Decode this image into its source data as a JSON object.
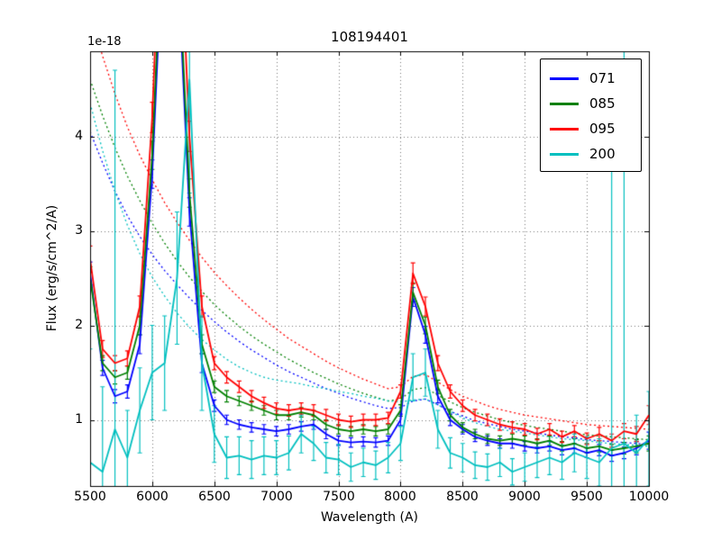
{
  "chart_data": {
    "type": "line",
    "title": "108194401",
    "xlabel": "Wavelength (A)",
    "ylabel": "Flux (erg/s/cm^2/A)",
    "y_offset_text": "1e-18",
    "grid": true,
    "legend_position": "upper right",
    "xlim": [
      5500,
      10000
    ],
    "ylim": [
      0.3,
      4.9
    ],
    "x_ticks": [
      5500,
      6000,
      6500,
      7000,
      7500,
      8000,
      8500,
      9000,
      9500,
      10000
    ],
    "y_ticks": [
      1,
      2,
      3,
      4
    ],
    "x": [
      5500,
      5600,
      5700,
      5800,
      5900,
      6000,
      6100,
      6200,
      6300,
      6400,
      6500,
      6600,
      6700,
      6800,
      6900,
      7000,
      7100,
      7200,
      7300,
      7400,
      7500,
      7600,
      7700,
      7800,
      7900,
      8000,
      8100,
      8200,
      8300,
      8400,
      8500,
      8600,
      8700,
      8800,
      8900,
      9000,
      9100,
      9200,
      9300,
      9400,
      9500,
      9600,
      9700,
      9800,
      9900,
      10000
    ],
    "series": [
      {
        "name": "071",
        "color": "#0000ff",
        "values": [
          2.55,
          1.55,
          1.25,
          1.3,
          1.8,
          3.6,
          6.5,
          6.0,
          3.2,
          1.6,
          1.15,
          1.0,
          0.95,
          0.92,
          0.9,
          0.88,
          0.9,
          0.93,
          0.95,
          0.85,
          0.78,
          0.76,
          0.77,
          0.76,
          0.78,
          1.0,
          2.3,
          1.9,
          1.25,
          1.0,
          0.9,
          0.82,
          0.78,
          0.75,
          0.75,
          0.72,
          0.7,
          0.72,
          0.68,
          0.7,
          0.65,
          0.68,
          0.62,
          0.65,
          0.7,
          0.78
        ],
        "errors": [
          0.12,
          0.08,
          0.07,
          0.07,
          0.1,
          0.15,
          0.2,
          0.2,
          0.15,
          0.1,
          0.06,
          0.05,
          0.05,
          0.05,
          0.05,
          0.05,
          0.05,
          0.05,
          0.05,
          0.05,
          0.05,
          0.05,
          0.05,
          0.05,
          0.05,
          0.06,
          0.1,
          0.09,
          0.07,
          0.06,
          0.05,
          0.05,
          0.05,
          0.05,
          0.05,
          0.05,
          0.05,
          0.05,
          0.05,
          0.05,
          0.05,
          0.06,
          0.06,
          0.06,
          0.07,
          0.09
        ],
        "model": [
          4.05,
          3.72,
          3.42,
          3.16,
          2.94,
          2.75,
          2.58,
          2.43,
          2.29,
          2.16,
          2.04,
          1.93,
          1.83,
          1.74,
          1.66,
          1.58,
          1.51,
          1.45,
          1.39,
          1.33,
          1.28,
          1.23,
          1.19,
          1.15,
          1.12,
          1.13,
          1.2,
          1.22,
          1.16,
          1.09,
          1.04,
          0.99,
          0.96,
          0.93,
          0.9,
          0.88,
          0.86,
          0.84,
          0.82,
          0.81,
          0.79,
          0.78,
          0.77,
          0.76,
          0.75,
          0.74
        ]
      },
      {
        "name": "085",
        "color": "#008000",
        "values": [
          2.5,
          1.6,
          1.45,
          1.5,
          2.0,
          3.8,
          6.8,
          6.2,
          3.4,
          1.8,
          1.35,
          1.25,
          1.2,
          1.15,
          1.1,
          1.05,
          1.05,
          1.08,
          1.05,
          0.95,
          0.9,
          0.88,
          0.9,
          0.88,
          0.9,
          1.1,
          2.35,
          2.0,
          1.35,
          1.05,
          0.92,
          0.85,
          0.8,
          0.78,
          0.8,
          0.78,
          0.75,
          0.78,
          0.72,
          0.75,
          0.7,
          0.72,
          0.68,
          0.7,
          0.72,
          0.75
        ],
        "errors": [
          0.12,
          0.08,
          0.07,
          0.07,
          0.1,
          0.15,
          0.2,
          0.2,
          0.15,
          0.1,
          0.06,
          0.06,
          0.05,
          0.05,
          0.05,
          0.05,
          0.05,
          0.05,
          0.05,
          0.05,
          0.05,
          0.05,
          0.05,
          0.05,
          0.05,
          0.06,
          0.1,
          0.09,
          0.07,
          0.06,
          0.05,
          0.05,
          0.05,
          0.05,
          0.05,
          0.05,
          0.05,
          0.05,
          0.05,
          0.05,
          0.05,
          0.06,
          0.06,
          0.06,
          0.07,
          0.08
        ],
        "model": [
          4.6,
          4.22,
          3.88,
          3.58,
          3.32,
          3.08,
          2.87,
          2.68,
          2.51,
          2.36,
          2.22,
          2.1,
          1.99,
          1.89,
          1.8,
          1.72,
          1.64,
          1.57,
          1.5,
          1.44,
          1.38,
          1.33,
          1.28,
          1.24,
          1.2,
          1.22,
          1.32,
          1.34,
          1.26,
          1.19,
          1.13,
          1.08,
          1.04,
          1.0,
          0.97,
          0.94,
          0.92,
          0.9,
          0.88,
          0.86,
          0.84,
          0.83,
          0.82,
          0.81,
          0.8,
          0.79
        ]
      },
      {
        "name": "095",
        "color": "#ff0000",
        "values": [
          2.7,
          1.75,
          1.6,
          1.65,
          2.2,
          4.2,
          7.5,
          7.0,
          4.0,
          2.2,
          1.6,
          1.45,
          1.35,
          1.25,
          1.18,
          1.12,
          1.1,
          1.12,
          1.1,
          1.05,
          1.0,
          0.98,
          1.0,
          1.0,
          1.02,
          1.3,
          2.55,
          2.2,
          1.6,
          1.3,
          1.15,
          1.05,
          1.0,
          0.95,
          0.92,
          0.9,
          0.85,
          0.9,
          0.82,
          0.88,
          0.8,
          0.85,
          0.78,
          0.88,
          0.85,
          1.05
        ],
        "errors": [
          0.14,
          0.09,
          0.08,
          0.08,
          0.11,
          0.16,
          0.22,
          0.22,
          0.16,
          0.11,
          0.07,
          0.06,
          0.06,
          0.06,
          0.06,
          0.06,
          0.06,
          0.06,
          0.06,
          0.06,
          0.06,
          0.06,
          0.06,
          0.06,
          0.06,
          0.07,
          0.11,
          0.1,
          0.08,
          0.07,
          0.06,
          0.06,
          0.06,
          0.06,
          0.06,
          0.06,
          0.06,
          0.06,
          0.06,
          0.06,
          0.06,
          0.07,
          0.07,
          0.08,
          0.08,
          0.1
        ],
        "model": [
          5.3,
          4.85,
          4.45,
          4.1,
          3.8,
          3.54,
          3.3,
          3.09,
          2.9,
          2.72,
          2.56,
          2.42,
          2.29,
          2.17,
          2.06,
          1.96,
          1.86,
          1.78,
          1.7,
          1.62,
          1.55,
          1.49,
          1.43,
          1.38,
          1.33,
          1.35,
          1.46,
          1.48,
          1.4,
          1.32,
          1.25,
          1.2,
          1.15,
          1.11,
          1.08,
          1.05,
          1.03,
          1.01,
          0.99,
          0.97,
          0.95,
          0.94,
          0.93,
          0.92,
          0.91,
          0.9
        ]
      },
      {
        "name": "200",
        "color": "#00bfbf",
        "values": [
          0.55,
          0.45,
          0.9,
          0.6,
          1.1,
          1.5,
          1.6,
          2.5,
          4.6,
          1.6,
          0.85,
          0.6,
          0.62,
          0.58,
          0.62,
          0.6,
          0.65,
          0.85,
          0.75,
          0.6,
          0.58,
          0.5,
          0.55,
          0.52,
          0.6,
          0.75,
          1.45,
          1.5,
          0.9,
          0.65,
          0.6,
          0.52,
          0.5,
          0.55,
          0.45,
          0.5,
          0.55,
          0.6,
          0.55,
          0.65,
          0.6,
          0.55,
          0.7,
          0.75,
          0.65,
          0.8
        ],
        "errors": [
          1.2,
          0.9,
          3.8,
          0.5,
          0.45,
          0.5,
          0.5,
          0.7,
          1.2,
          0.5,
          0.3,
          0.22,
          0.2,
          0.2,
          0.2,
          0.18,
          0.18,
          0.2,
          0.18,
          0.16,
          0.16,
          0.15,
          0.15,
          0.15,
          0.16,
          0.18,
          0.25,
          0.25,
          0.2,
          0.16,
          0.15,
          0.14,
          0.14,
          0.15,
          0.14,
          0.15,
          0.16,
          0.18,
          0.18,
          0.2,
          0.22,
          0.25,
          4.0,
          4.5,
          0.4,
          0.5
        ],
        "model": [
          4.35,
          3.85,
          3.42,
          3.06,
          2.76,
          2.51,
          2.31,
          2.13,
          1.98,
          1.85,
          1.74,
          1.64,
          1.56,
          1.5,
          1.45,
          1.42,
          1.4,
          1.38,
          1.35,
          1.33,
          1.3,
          1.28,
          1.25,
          1.23,
          1.2,
          1.19,
          1.21,
          1.22,
          1.16,
          1.09,
          1.02,
          0.97,
          0.93,
          0.9,
          0.88,
          0.86,
          0.84,
          0.82,
          0.8,
          0.79,
          0.78,
          0.76,
          0.75,
          0.74,
          0.73,
          0.72
        ]
      }
    ]
  }
}
